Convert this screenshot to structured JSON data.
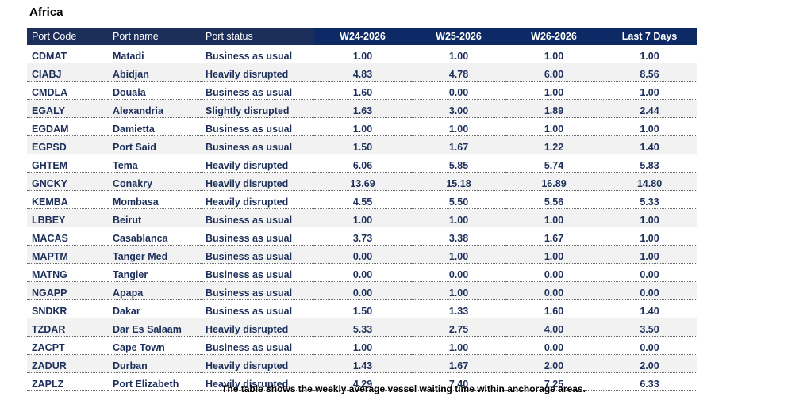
{
  "region": "Africa",
  "columns": [
    "Port Code",
    "Port name",
    "Port status",
    "W24-2026",
    "W25-2026",
    "W26-2026",
    "Last 7 Days"
  ],
  "rows": [
    [
      "CDMAT",
      "Matadi",
      "Business as usual",
      "1.00",
      "1.00",
      "1.00",
      "1.00"
    ],
    [
      "CIABJ",
      "Abidjan",
      "Heavily disrupted",
      "4.83",
      "4.78",
      "6.00",
      "8.56"
    ],
    [
      "CMDLA",
      "Douala",
      "Business as usual",
      "1.60",
      "0.00",
      "1.00",
      "1.00"
    ],
    [
      "EGALY",
      "Alexandria",
      "Slightly disrupted",
      "1.63",
      "3.00",
      "1.89",
      "2.44"
    ],
    [
      "EGDAM",
      "Damietta",
      "Business as usual",
      "1.00",
      "1.00",
      "1.00",
      "1.00"
    ],
    [
      "EGPSD",
      "Port Said",
      "Business as usual",
      "1.50",
      "1.67",
      "1.22",
      "1.40"
    ],
    [
      "GHTEM",
      "Tema",
      "Heavily disrupted",
      "6.06",
      "5.85",
      "5.74",
      "5.83"
    ],
    [
      "GNCKY",
      "Conakry",
      "Heavily disrupted",
      "13.69",
      "15.18",
      "16.89",
      "14.80"
    ],
    [
      "KEMBA",
      "Mombasa",
      "Heavily disrupted",
      "4.55",
      "5.50",
      "5.56",
      "5.33"
    ],
    [
      "LBBEY",
      "Beirut",
      "Business as usual",
      "1.00",
      "1.00",
      "1.00",
      "1.00"
    ],
    [
      "MACAS",
      "Casablanca",
      "Business as usual",
      "3.73",
      "3.38",
      "1.67",
      "1.00"
    ],
    [
      "MAPTM",
      "Tanger Med",
      "Business as usual",
      "0.00",
      "1.00",
      "1.00",
      "1.00"
    ],
    [
      "MATNG",
      "Tangier",
      "Business as usual",
      "0.00",
      "0.00",
      "0.00",
      "0.00"
    ],
    [
      "NGAPP",
      "Apapa",
      "Business as usual",
      "0.00",
      "1.00",
      "0.00",
      "0.00"
    ],
    [
      "SNDKR",
      "Dakar",
      "Business as usual",
      "1.50",
      "1.33",
      "1.60",
      "1.40"
    ],
    [
      "TZDAR",
      "Dar Es Salaam",
      "Heavily disrupted",
      "5.33",
      "2.75",
      "4.00",
      "3.50"
    ],
    [
      "ZACPT",
      "Cape Town",
      "Business as usual",
      "1.00",
      "1.00",
      "0.00",
      "0.00"
    ],
    [
      "ZADUR",
      "Durban",
      "Heavily disrupted",
      "1.43",
      "1.67",
      "2.00",
      "2.00"
    ],
    [
      "ZAPLZ",
      "Port Elizabeth",
      "Heavily disrupted",
      "4.29",
      "7.40",
      "7.25",
      "6.33"
    ]
  ],
  "caption": "The table shows the weekly average vessel waiting time within anchorage areas."
}
